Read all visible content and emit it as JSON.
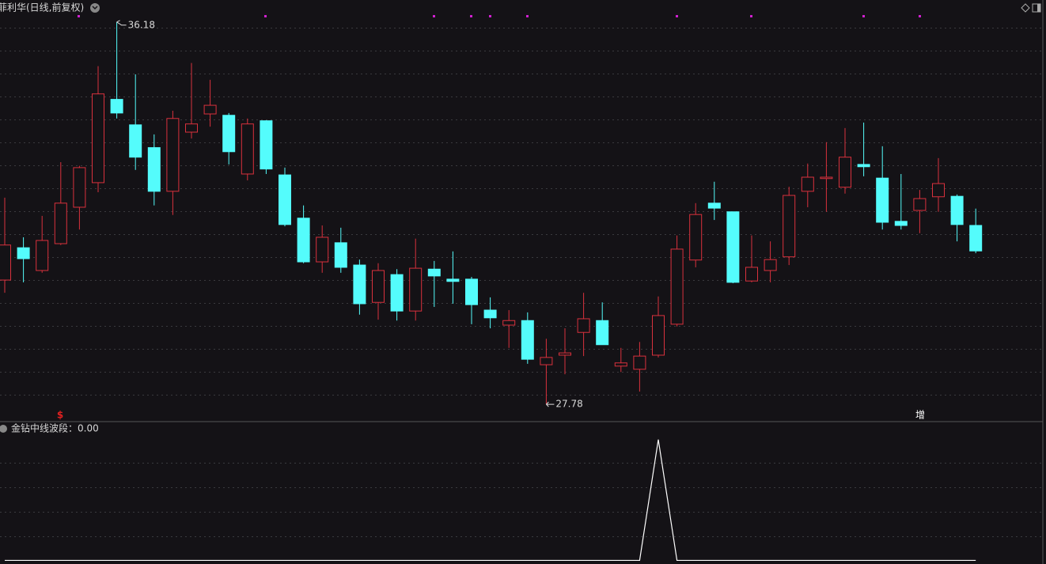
{
  "chart_data": [
    {
      "type": "candlestick",
      "title": "菲利华(日线,前复权)",
      "open": [
        30.51,
        31.22,
        30.72,
        31.31,
        32.11,
        32.65,
        34.48,
        33.92,
        33.42,
        32.46,
        33.76,
        34.16,
        34.13,
        32.84,
        34.01,
        32.82,
        31.87,
        30.91,
        31.33,
        30.84,
        30.02,
        30.63,
        29.83,
        30.75,
        30.53,
        30.53,
        29.85,
        29.52,
        29.62,
        28.65,
        28.86,
        29.36,
        29.62,
        28.62,
        28.55,
        28.86,
        29.54,
        30.95,
        32.2,
        32.01,
        30.49,
        30.72,
        31.02,
        32.46,
        32.74,
        32.55,
        33.05,
        32.75,
        31.8,
        32.04,
        32.34,
        32.35,
        31.71
      ],
      "high": [
        32.32,
        31.45,
        31.92,
        33.1,
        33.02,
        35.21,
        36.18,
        35.03,
        33.71,
        34.23,
        35.28,
        34.91,
        34.18,
        34.06,
        34.02,
        32.98,
        32.15,
        31.71,
        31.66,
        30.96,
        30.88,
        30.75,
        31.42,
        30.93,
        31.14,
        30.58,
        30.13,
        29.85,
        29.8,
        29.22,
        29.45,
        30.23,
        30.02,
        29.02,
        29.15,
        30.15,
        31.49,
        32.2,
        32.67,
        32.01,
        31.49,
        31.36,
        32.56,
        33.07,
        33.54,
        33.85,
        33.97,
        33.45,
        32.84,
        32.49,
        33.19,
        32.39,
        32.08
      ],
      "low": [
        30.23,
        30.46,
        30.67,
        31.28,
        31.62,
        32.44,
        34.06,
        32.93,
        32.15,
        31.94,
        33.62,
        33.88,
        33.05,
        32.7,
        32.84,
        31.69,
        30.88,
        30.67,
        30.67,
        29.75,
        29.64,
        29.62,
        29.62,
        29.92,
        29.99,
        29.54,
        29.45,
        29.02,
        28.67,
        27.78,
        28.44,
        28.84,
        29.09,
        28.49,
        28.06,
        28.81,
        29.49,
        30.79,
        31.83,
        30.44,
        30.46,
        30.46,
        30.84,
        32.11,
        32.01,
        32.41,
        32.79,
        31.62,
        31.62,
        31.54,
        32.01,
        31.36,
        31.1
      ],
      "close": [
        31.28,
        30.98,
        31.38,
        32.2,
        32.98,
        34.6,
        34.18,
        33.21,
        32.46,
        34.06,
        33.94,
        34.35,
        33.33,
        33.94,
        32.95,
        31.73,
        30.91,
        31.45,
        30.79,
        29.99,
        30.72,
        29.83,
        30.77,
        30.6,
        30.48,
        29.97,
        29.68,
        29.62,
        28.77,
        28.81,
        28.91,
        29.66,
        29.09,
        28.69,
        28.84,
        29.73,
        31.19,
        31.95,
        32.09,
        30.46,
        30.79,
        30.96,
        32.37,
        32.77,
        32.77,
        33.21,
        33.0,
        31.78,
        31.71,
        32.3,
        32.63,
        31.73,
        31.15
      ],
      "up_color": "#d9313d",
      "down_color": "#54fcfc",
      "ylim": [
        27.4,
        36.35
      ],
      "annotations": {
        "max": 36.18,
        "min": 27.78
      },
      "signals": [
        "$",
        "增"
      ]
    },
    {
      "type": "line",
      "title": "金钻中线波段：0.00",
      "color": "#ffffff",
      "values": [
        0,
        0,
        0,
        0,
        0,
        0,
        0,
        0,
        0,
        0,
        0,
        0,
        0,
        0,
        0,
        0,
        0,
        0,
        0,
        0,
        0,
        0,
        0,
        0,
        0,
        0,
        0,
        0,
        0,
        0,
        0,
        0,
        0,
        0,
        0,
        1,
        0,
        0,
        0,
        0,
        0,
        0,
        0,
        0,
        0,
        0,
        0,
        0,
        0,
        0,
        0,
        0,
        0
      ],
      "ylim": [
        -0.03,
        1.07
      ]
    }
  ]
}
